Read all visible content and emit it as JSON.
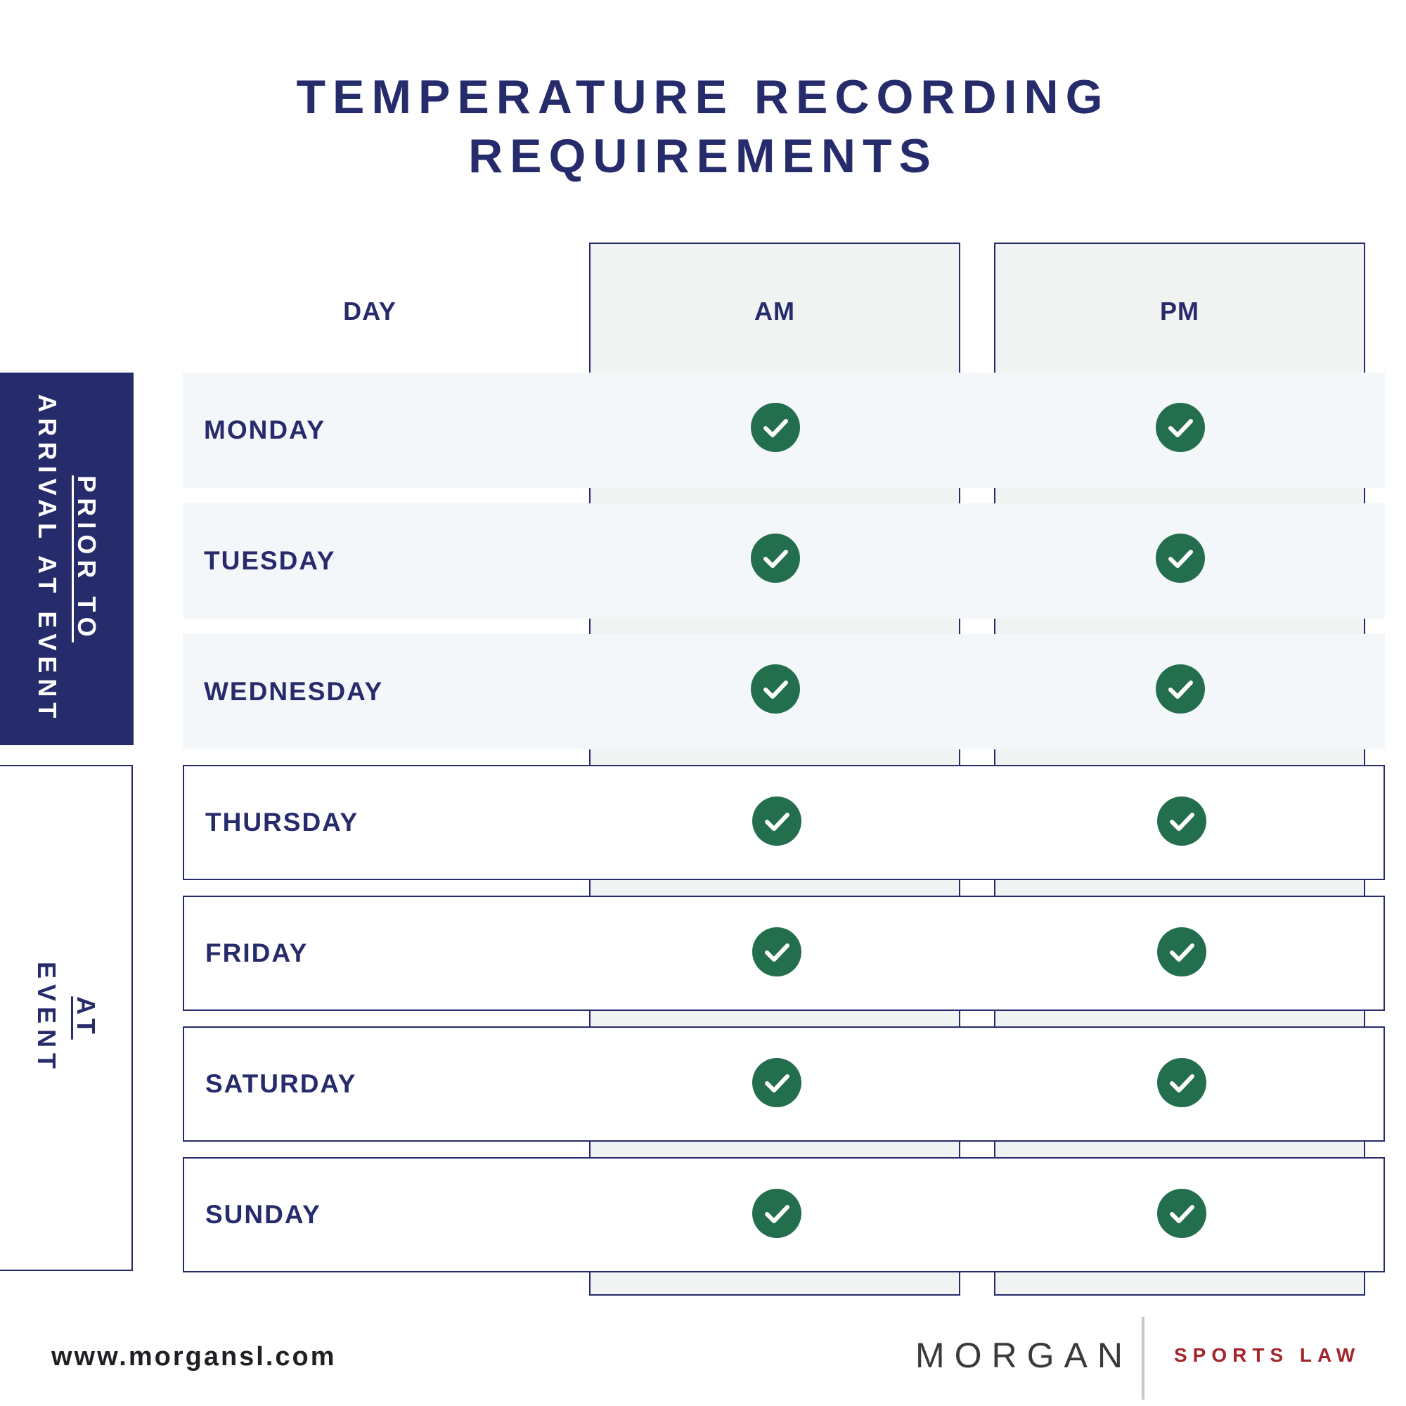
{
  "title": {
    "line1": "TEMPERATURE RECORDING",
    "line2": "REQUIREMENTS"
  },
  "table": {
    "headers": {
      "day": "DAY",
      "am": "AM",
      "pm": "PM"
    },
    "groups": {
      "prior": {
        "line1": "PRIOR TO",
        "line2": "ARRIVAL AT EVENT"
      },
      "event": {
        "line1": "AT",
        "line2": "EVENT"
      }
    },
    "rows": [
      {
        "day": "MONDAY",
        "am": true,
        "pm": true
      },
      {
        "day": "TUESDAY",
        "am": true,
        "pm": true
      },
      {
        "day": "WEDNESDAY",
        "am": true,
        "pm": true
      },
      {
        "day": "THURSDAY",
        "am": true,
        "pm": true
      },
      {
        "day": "FRIDAY",
        "am": true,
        "pm": true
      },
      {
        "day": "SATURDAY",
        "am": true,
        "pm": true
      },
      {
        "day": "SUNDAY",
        "am": true,
        "pm": true
      }
    ],
    "icons": {
      "check": "check-circle-icon"
    }
  },
  "footer": {
    "url": "www.morgansl.com",
    "brand_name": "MORGAN",
    "brand_tagline": "SPORTS LAW"
  },
  "colors": {
    "navy": "#262b6b",
    "check_green": "#236e4c",
    "brand_red": "#a3252b",
    "panel_grey": "#f1f2f2",
    "row_tint": "#f3f7fa"
  }
}
